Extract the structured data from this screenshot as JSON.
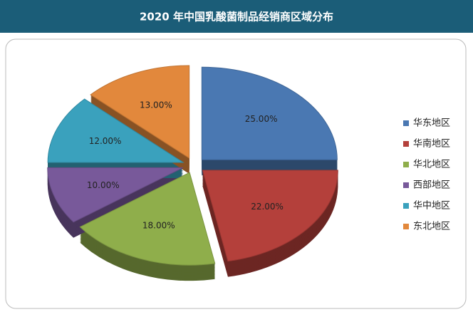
{
  "chart_data": {
    "type": "pie",
    "title": "2020 年中国乳酸菌制品经销商区域分布",
    "categories": [
      "华东地区",
      "华南地区",
      "华北地区",
      "西部地区",
      "华中地区",
      "东北地区"
    ],
    "values": [
      25,
      22,
      18,
      10,
      12,
      13
    ],
    "value_labels": [
      "25.00%",
      "22.00%",
      "18.00%",
      "10.00%",
      "12.00%",
      "13.00%"
    ],
    "colors": [
      "#4a78b2",
      "#b4403b",
      "#8fae4b",
      "#78599a",
      "#3aa1bd",
      "#e2883c"
    ],
    "legend": "right"
  }
}
